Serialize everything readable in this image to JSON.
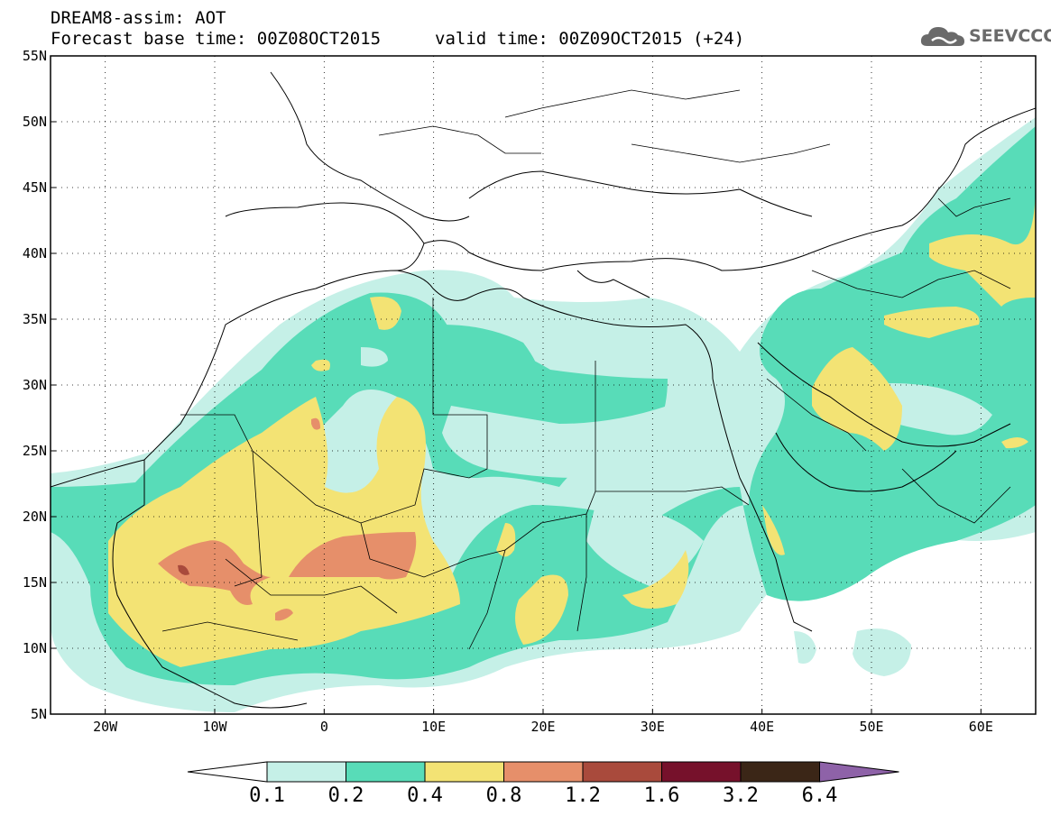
{
  "header": {
    "line1": "DREAM8-assim: AOT",
    "line2": "Forecast base time: 00Z08OCT2015",
    "valid": "valid time: 00Z09OCT2015 (+24)"
  },
  "logo": {
    "text": "SEEVCCC"
  },
  "axes": {
    "lat_labels": [
      "55N",
      "50N",
      "45N",
      "40N",
      "35N",
      "30N",
      "25N",
      "20N",
      "15N",
      "10N",
      "5N"
    ],
    "lon_labels": [
      "20W",
      "10W",
      "0",
      "10E",
      "20E",
      "30E",
      "40E",
      "50E",
      "60E"
    ]
  },
  "colorbar": {
    "labels": [
      "0.1",
      "0.2",
      "0.4",
      "0.8",
      "1.2",
      "1.6",
      "3.2",
      "6.4"
    ],
    "colors": [
      "#ffffff",
      "#c5f0e7",
      "#58dcb8",
      "#f3e374",
      "#e68f6a",
      "#a94a3c",
      "#76112b",
      "#3b2617",
      "#8e62a8"
    ]
  }
}
